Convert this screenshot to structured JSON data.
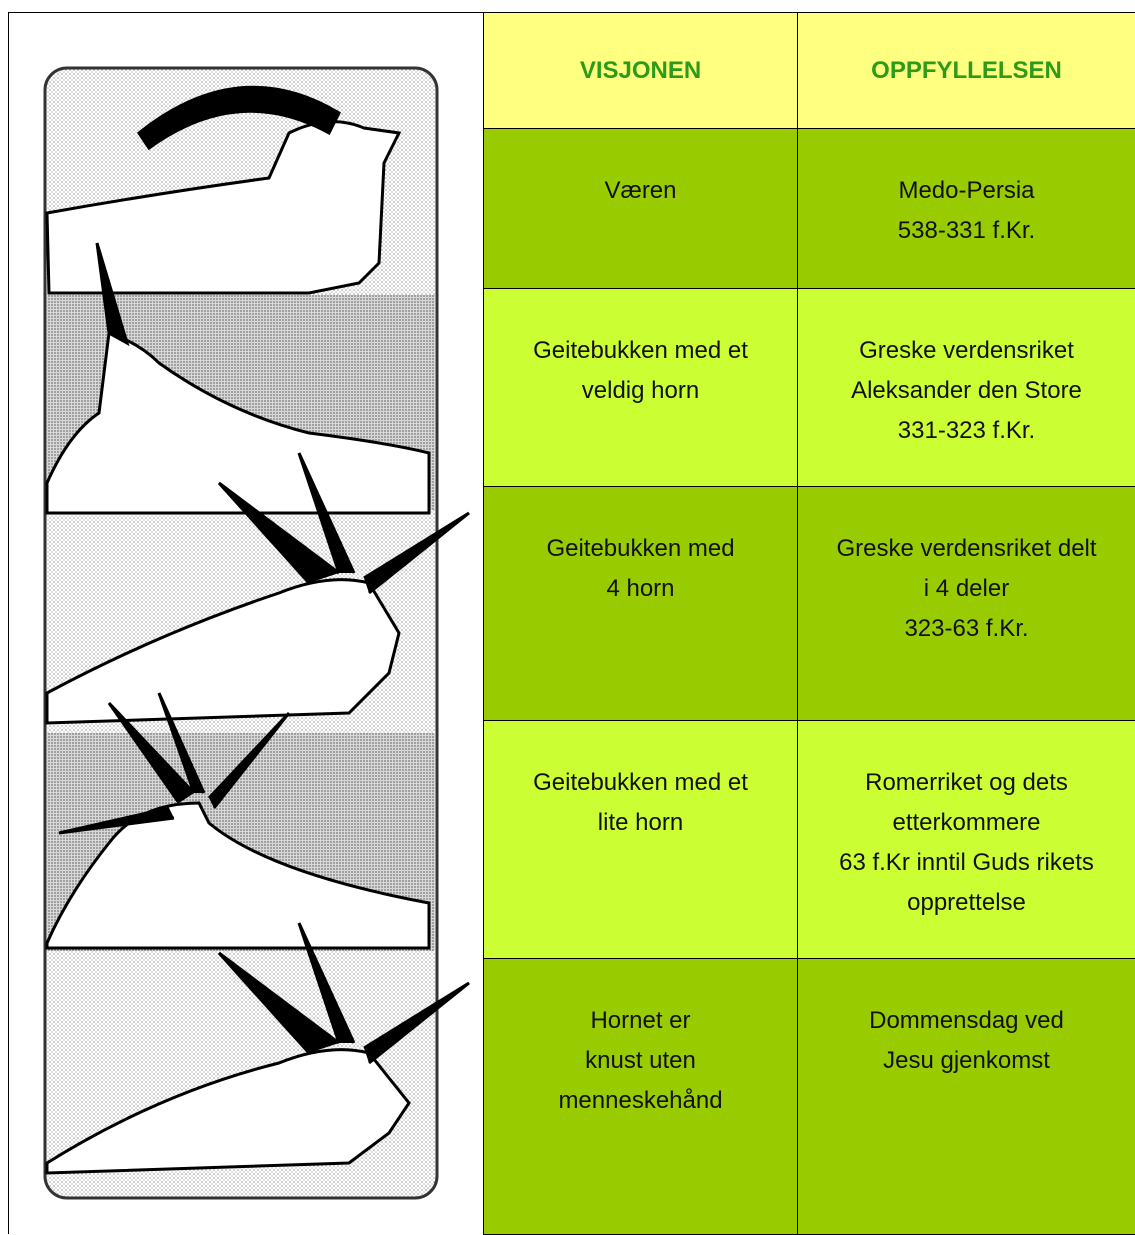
{
  "table": {
    "header": [
      "VISJONEN",
      "OPPFYLLELSEN"
    ],
    "rows": [
      [
        [
          "Væren"
        ],
        [
          "Medo-Persia",
          "538-331 f.Kr."
        ]
      ],
      [
        [
          "Geitebukken med et",
          "veldig horn"
        ],
        [
          "Greske verdensriket",
          "Aleksander den Store",
          "331-323 f.Kr."
        ]
      ],
      [
        [
          "Geitebukken med",
          "4 horn"
        ],
        [
          "Greske verdensriket delt",
          "i 4 deler",
          "323-63 f.Kr."
        ]
      ],
      [
        [
          "Geitebukken med et",
          "lite horn"
        ],
        [
          "Romerriket og dets",
          "etterkommere",
          "63 f.Kr inntil Guds rikets",
          "opprettelse"
        ]
      ],
      [
        [
          "Hornet er",
          "knust uten",
          "menneskehånd"
        ],
        [
          "Dommensdag ved",
          "Jesu gjenkomst"
        ]
      ]
    ]
  }
}
